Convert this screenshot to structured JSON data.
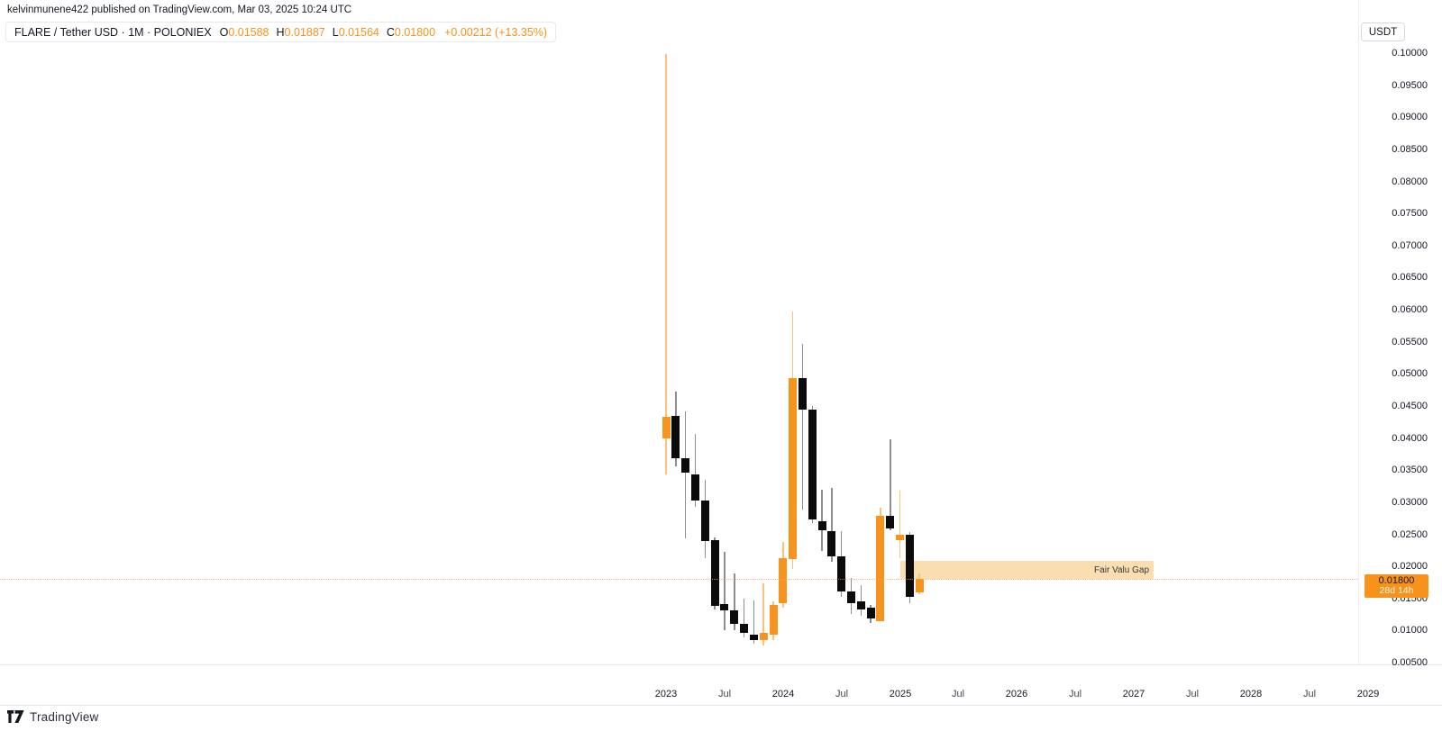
{
  "attribution": "kelvinmunene422 published on TradingView.com, Mar 03, 2025 10:24 UTC",
  "legend": {
    "title": "FLARE / Tether USD · 1M · POLONIEX",
    "ohlc": [
      {
        "label": "O",
        "value": "0.01588"
      },
      {
        "label": "H",
        "value": "0.01887"
      },
      {
        "label": "L",
        "value": "0.01564"
      },
      {
        "label": "C",
        "value": "0.01800"
      }
    ],
    "change": "+0.00212 (+13.35%)"
  },
  "price_scale": {
    "unit_button": "USDT",
    "active_label": {
      "price": "0.01800",
      "countdown": "28d 14h"
    }
  },
  "drawing": {
    "fvg_label": "Fair Valu Gap",
    "fvg_price_top": 0.0208,
    "fvg_price_bottom": 0.018,
    "fvg_month_span": [
      24,
      50
    ]
  },
  "footer": {
    "brand": "TradingView"
  },
  "colors": {
    "up_body": "#f7941d",
    "down_body": "#0b0b0b",
    "up_wick": "#fbc180",
    "down_wick": "#8d8d93",
    "fvg_fill": "#fadeb0",
    "price_label_bg": "#f7931a",
    "accent": "#f7931a"
  },
  "chart_data": {
    "type": "candlestick",
    "title": "FLARE / Tether USD · 1M · POLONIEX",
    "legend_position": "top-left",
    "grid": false,
    "current_price": 0.018,
    "y_axis": {
      "min": 0.005,
      "max": 0.1,
      "tick_step": 0.005,
      "decimals": 5,
      "side": "right"
    },
    "x_axis": {
      "unit": "month",
      "start": "Jan 2023",
      "ticks": [
        {
          "label": "2023",
          "m": 0
        },
        {
          "label": "Jul",
          "m": 6
        },
        {
          "label": "2024",
          "m": 12
        },
        {
          "label": "Jul",
          "m": 18
        },
        {
          "label": "2025",
          "m": 24
        },
        {
          "label": "Jul",
          "m": 30
        },
        {
          "label": "2026",
          "m": 36
        },
        {
          "label": "Jul",
          "m": 42
        },
        {
          "label": "2027",
          "m": 48
        },
        {
          "label": "Jul",
          "m": 54
        },
        {
          "label": "2028",
          "m": 60
        },
        {
          "label": "Jul",
          "m": 66
        },
        {
          "label": "2029",
          "m": 72
        }
      ]
    },
    "candles": [
      {
        "t": "Jan 2023",
        "o": 0.04,
        "h": 0.0998,
        "l": 0.0343,
        "c": 0.0433
      },
      {
        "t": "Feb 2023",
        "o": 0.0435,
        "h": 0.0472,
        "l": 0.0356,
        "c": 0.0369
      },
      {
        "t": "Mar 2023",
        "o": 0.0369,
        "h": 0.0441,
        "l": 0.0244,
        "c": 0.0346
      },
      {
        "t": "Apr 2023",
        "o": 0.0344,
        "h": 0.0407,
        "l": 0.0293,
        "c": 0.0302
      },
      {
        "t": "May 2023",
        "o": 0.0302,
        "h": 0.0335,
        "l": 0.0213,
        "c": 0.0239
      },
      {
        "t": "Jun 2023",
        "o": 0.0241,
        "h": 0.0245,
        "l": 0.0133,
        "c": 0.0138
      },
      {
        "t": "Jul 2023",
        "o": 0.0141,
        "h": 0.0222,
        "l": 0.01,
        "c": 0.0131
      },
      {
        "t": "Aug 2023",
        "o": 0.0131,
        "h": 0.0189,
        "l": 0.01,
        "c": 0.011
      },
      {
        "t": "Sep 2023",
        "o": 0.011,
        "h": 0.0149,
        "l": 0.0089,
        "c": 0.0096
      },
      {
        "t": "Oct 2023",
        "o": 0.0094,
        "h": 0.0147,
        "l": 0.008,
        "c": 0.0085
      },
      {
        "t": "Nov 2023",
        "o": 0.0085,
        "h": 0.0173,
        "l": 0.0077,
        "c": 0.0096
      },
      {
        "t": "Dec 2023",
        "o": 0.0093,
        "h": 0.0145,
        "l": 0.0085,
        "c": 0.014
      },
      {
        "t": "Jan 2024",
        "o": 0.0142,
        "h": 0.0238,
        "l": 0.0135,
        "c": 0.0213
      },
      {
        "t": "Feb 2024",
        "o": 0.0212,
        "h": 0.0597,
        "l": 0.0196,
        "c": 0.0494
      },
      {
        "t": "Mar 2024",
        "o": 0.0494,
        "h": 0.0547,
        "l": 0.0289,
        "c": 0.0444
      },
      {
        "t": "Apr 2024",
        "o": 0.0444,
        "h": 0.045,
        "l": 0.0267,
        "c": 0.0273
      },
      {
        "t": "May 2024",
        "o": 0.0271,
        "h": 0.032,
        "l": 0.0224,
        "c": 0.0257
      },
      {
        "t": "Jun 2024",
        "o": 0.0255,
        "h": 0.0323,
        "l": 0.0208,
        "c": 0.0215
      },
      {
        "t": "Jul 2024",
        "o": 0.0215,
        "h": 0.0255,
        "l": 0.0152,
        "c": 0.0161
      },
      {
        "t": "Aug 2024",
        "o": 0.0161,
        "h": 0.0182,
        "l": 0.0126,
        "c": 0.0142
      },
      {
        "t": "Sep 2024",
        "o": 0.0145,
        "h": 0.0171,
        "l": 0.0123,
        "c": 0.0133
      },
      {
        "t": "Oct 2024",
        "o": 0.0135,
        "h": 0.014,
        "l": 0.0112,
        "c": 0.0118
      },
      {
        "t": "Nov 2024",
        "o": 0.0115,
        "h": 0.0292,
        "l": 0.0114,
        "c": 0.0279
      },
      {
        "t": "Dec 2024",
        "o": 0.0279,
        "h": 0.0398,
        "l": 0.0257,
        "c": 0.0259
      },
      {
        "t": "Jan 2025",
        "o": 0.0241,
        "h": 0.0318,
        "l": 0.0213,
        "c": 0.025
      },
      {
        "t": "Feb 2025",
        "o": 0.025,
        "h": 0.0253,
        "l": 0.0142,
        "c": 0.0152
      },
      {
        "t": "Mar 2025",
        "o": 0.01588,
        "h": 0.01887,
        "l": 0.01564,
        "c": 0.018
      }
    ]
  }
}
